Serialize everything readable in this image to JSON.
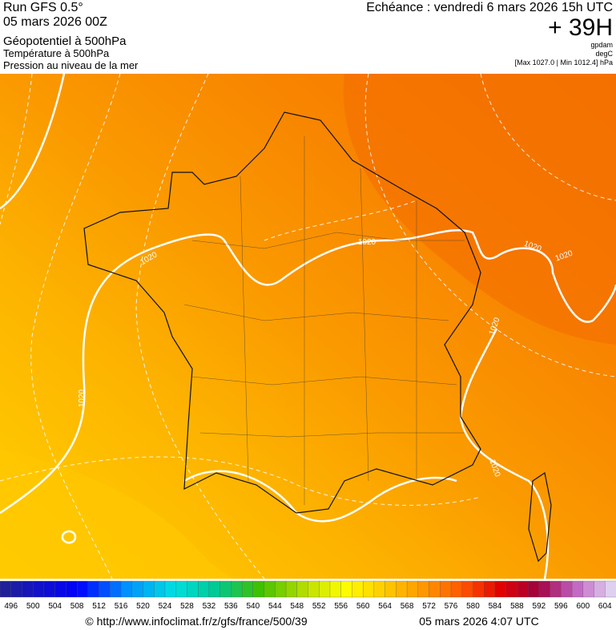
{
  "header": {
    "run": "Run GFS 0.5°",
    "run_date": "05 mars 2026 00Z",
    "field_main": "Géopotentiel à 500hPa",
    "field_temp": "Température à 500hPa",
    "field_pressure": "Pression au niveau de la mer",
    "valid_time": "Echéance : vendredi 6 mars 2026 15h UTC",
    "lead": "+ 39H",
    "unit_geo": "gpdam",
    "unit_temp": "degC",
    "pressure_range": "[Max 1027.0 | Min 1012.4] hPa"
  },
  "map": {
    "isobar_labels": [
      "1020",
      "1020",
      "1020",
      "1020",
      "1020",
      "1020",
      "1020"
    ]
  },
  "colorbar": {
    "labels": [
      496,
      500,
      504,
      508,
      512,
      516,
      520,
      524,
      528,
      532,
      536,
      540,
      544,
      548,
      552,
      556,
      560,
      564,
      568,
      572,
      576,
      580,
      584,
      588,
      592,
      596,
      600,
      604
    ]
  },
  "footer": {
    "url": "© http://www.infoclimat.fr/z/gfs/france/500/39",
    "generated": "05 mars 2026  4:07 UTC"
  }
}
